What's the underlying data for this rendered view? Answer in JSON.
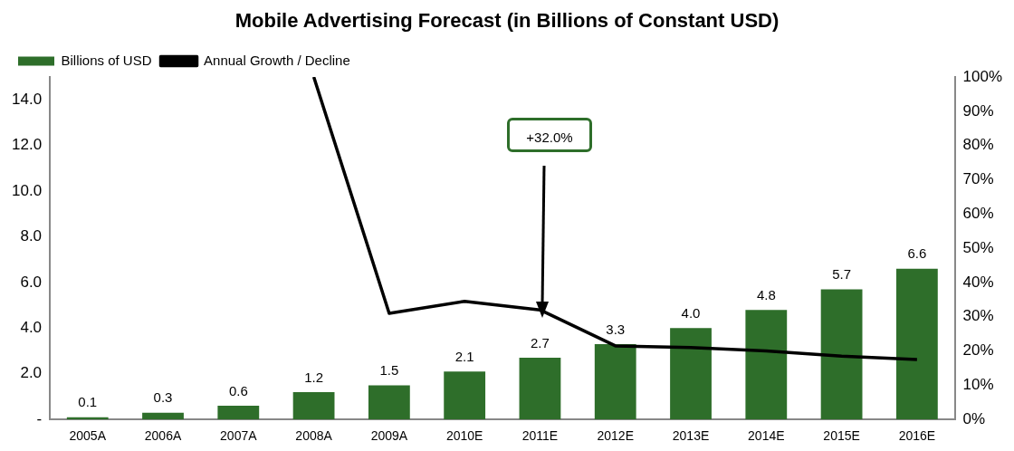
{
  "chart_data": {
    "type": "bar",
    "title": "Mobile Advertising Forecast (in Billions of Constant USD)",
    "categories": [
      "2005A",
      "2006A",
      "2007A",
      "2008A",
      "2009A",
      "2010E",
      "2011E",
      "2012E",
      "2013E",
      "2014E",
      "2015E",
      "2016E"
    ],
    "series": [
      {
        "name": "Billions of USD",
        "color": "#2e6e2a",
        "values": [
          0.1,
          0.3,
          0.6,
          1.2,
          1.5,
          2.1,
          2.7,
          3.3,
          4.0,
          4.8,
          5.7,
          6.6
        ],
        "value_labels": [
          "0.1",
          "0.3",
          "0.6",
          "1.2",
          "1.5",
          "2.1",
          "2.7",
          "3.3",
          "4.0",
          "4.8",
          "5.7",
          "6.6"
        ]
      },
      {
        "name": "Annual Growth / Decline",
        "type": "line",
        "axis": "y2",
        "color": "#000000",
        "values": [
          null,
          null,
          null,
          100,
          31,
          34.5,
          32,
          21.5,
          21,
          20,
          18.5,
          17.5
        ]
      }
    ],
    "ylim": [
      0,
      15
    ],
    "yticks": [
      {
        "value": 0,
        "label": "-"
      },
      {
        "value": 2,
        "label": "2.0"
      },
      {
        "value": 4,
        "label": "4.0"
      },
      {
        "value": 6,
        "label": "6.0"
      },
      {
        "value": 8,
        "label": "8.0"
      },
      {
        "value": 10,
        "label": "10.0"
      },
      {
        "value": 12,
        "label": "12.0"
      },
      {
        "value": 14,
        "label": "14.0"
      }
    ],
    "y2lim": [
      0,
      100
    ],
    "y2ticks": [
      {
        "value": 0,
        "label": "0%"
      },
      {
        "value": 10,
        "label": "10%"
      },
      {
        "value": 20,
        "label": "20%"
      },
      {
        "value": 30,
        "label": "30%"
      },
      {
        "value": 40,
        "label": "40%"
      },
      {
        "value": 50,
        "label": "50%"
      },
      {
        "value": 60,
        "label": "60%"
      },
      {
        "value": 70,
        "label": "70%"
      },
      {
        "value": 80,
        "label": "80%"
      },
      {
        "value": 90,
        "label": "90%"
      },
      {
        "value": 100,
        "label": "100%"
      }
    ],
    "annotations": [
      "+32.0%"
    ],
    "grid": false,
    "legend": "top left",
    "marker": "none",
    "line_style": "solid"
  }
}
